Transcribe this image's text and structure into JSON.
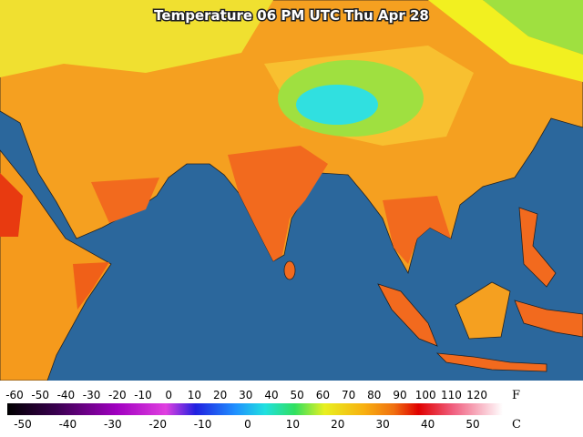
{
  "map": {
    "title": "Temperature 06 PM UTC Thu Apr 28"
  },
  "legend": {
    "fahrenheit": {
      "unit": "F",
      "ticks": [
        -60,
        -50,
        -40,
        -30,
        -20,
        -10,
        0,
        10,
        20,
        30,
        40,
        50,
        60,
        70,
        80,
        90,
        100,
        110,
        120
      ]
    },
    "celsius": {
      "unit": "C",
      "ticks": [
        -50,
        -40,
        -30,
        -20,
        -10,
        0,
        10,
        20,
        30,
        40,
        50
      ]
    }
  }
}
